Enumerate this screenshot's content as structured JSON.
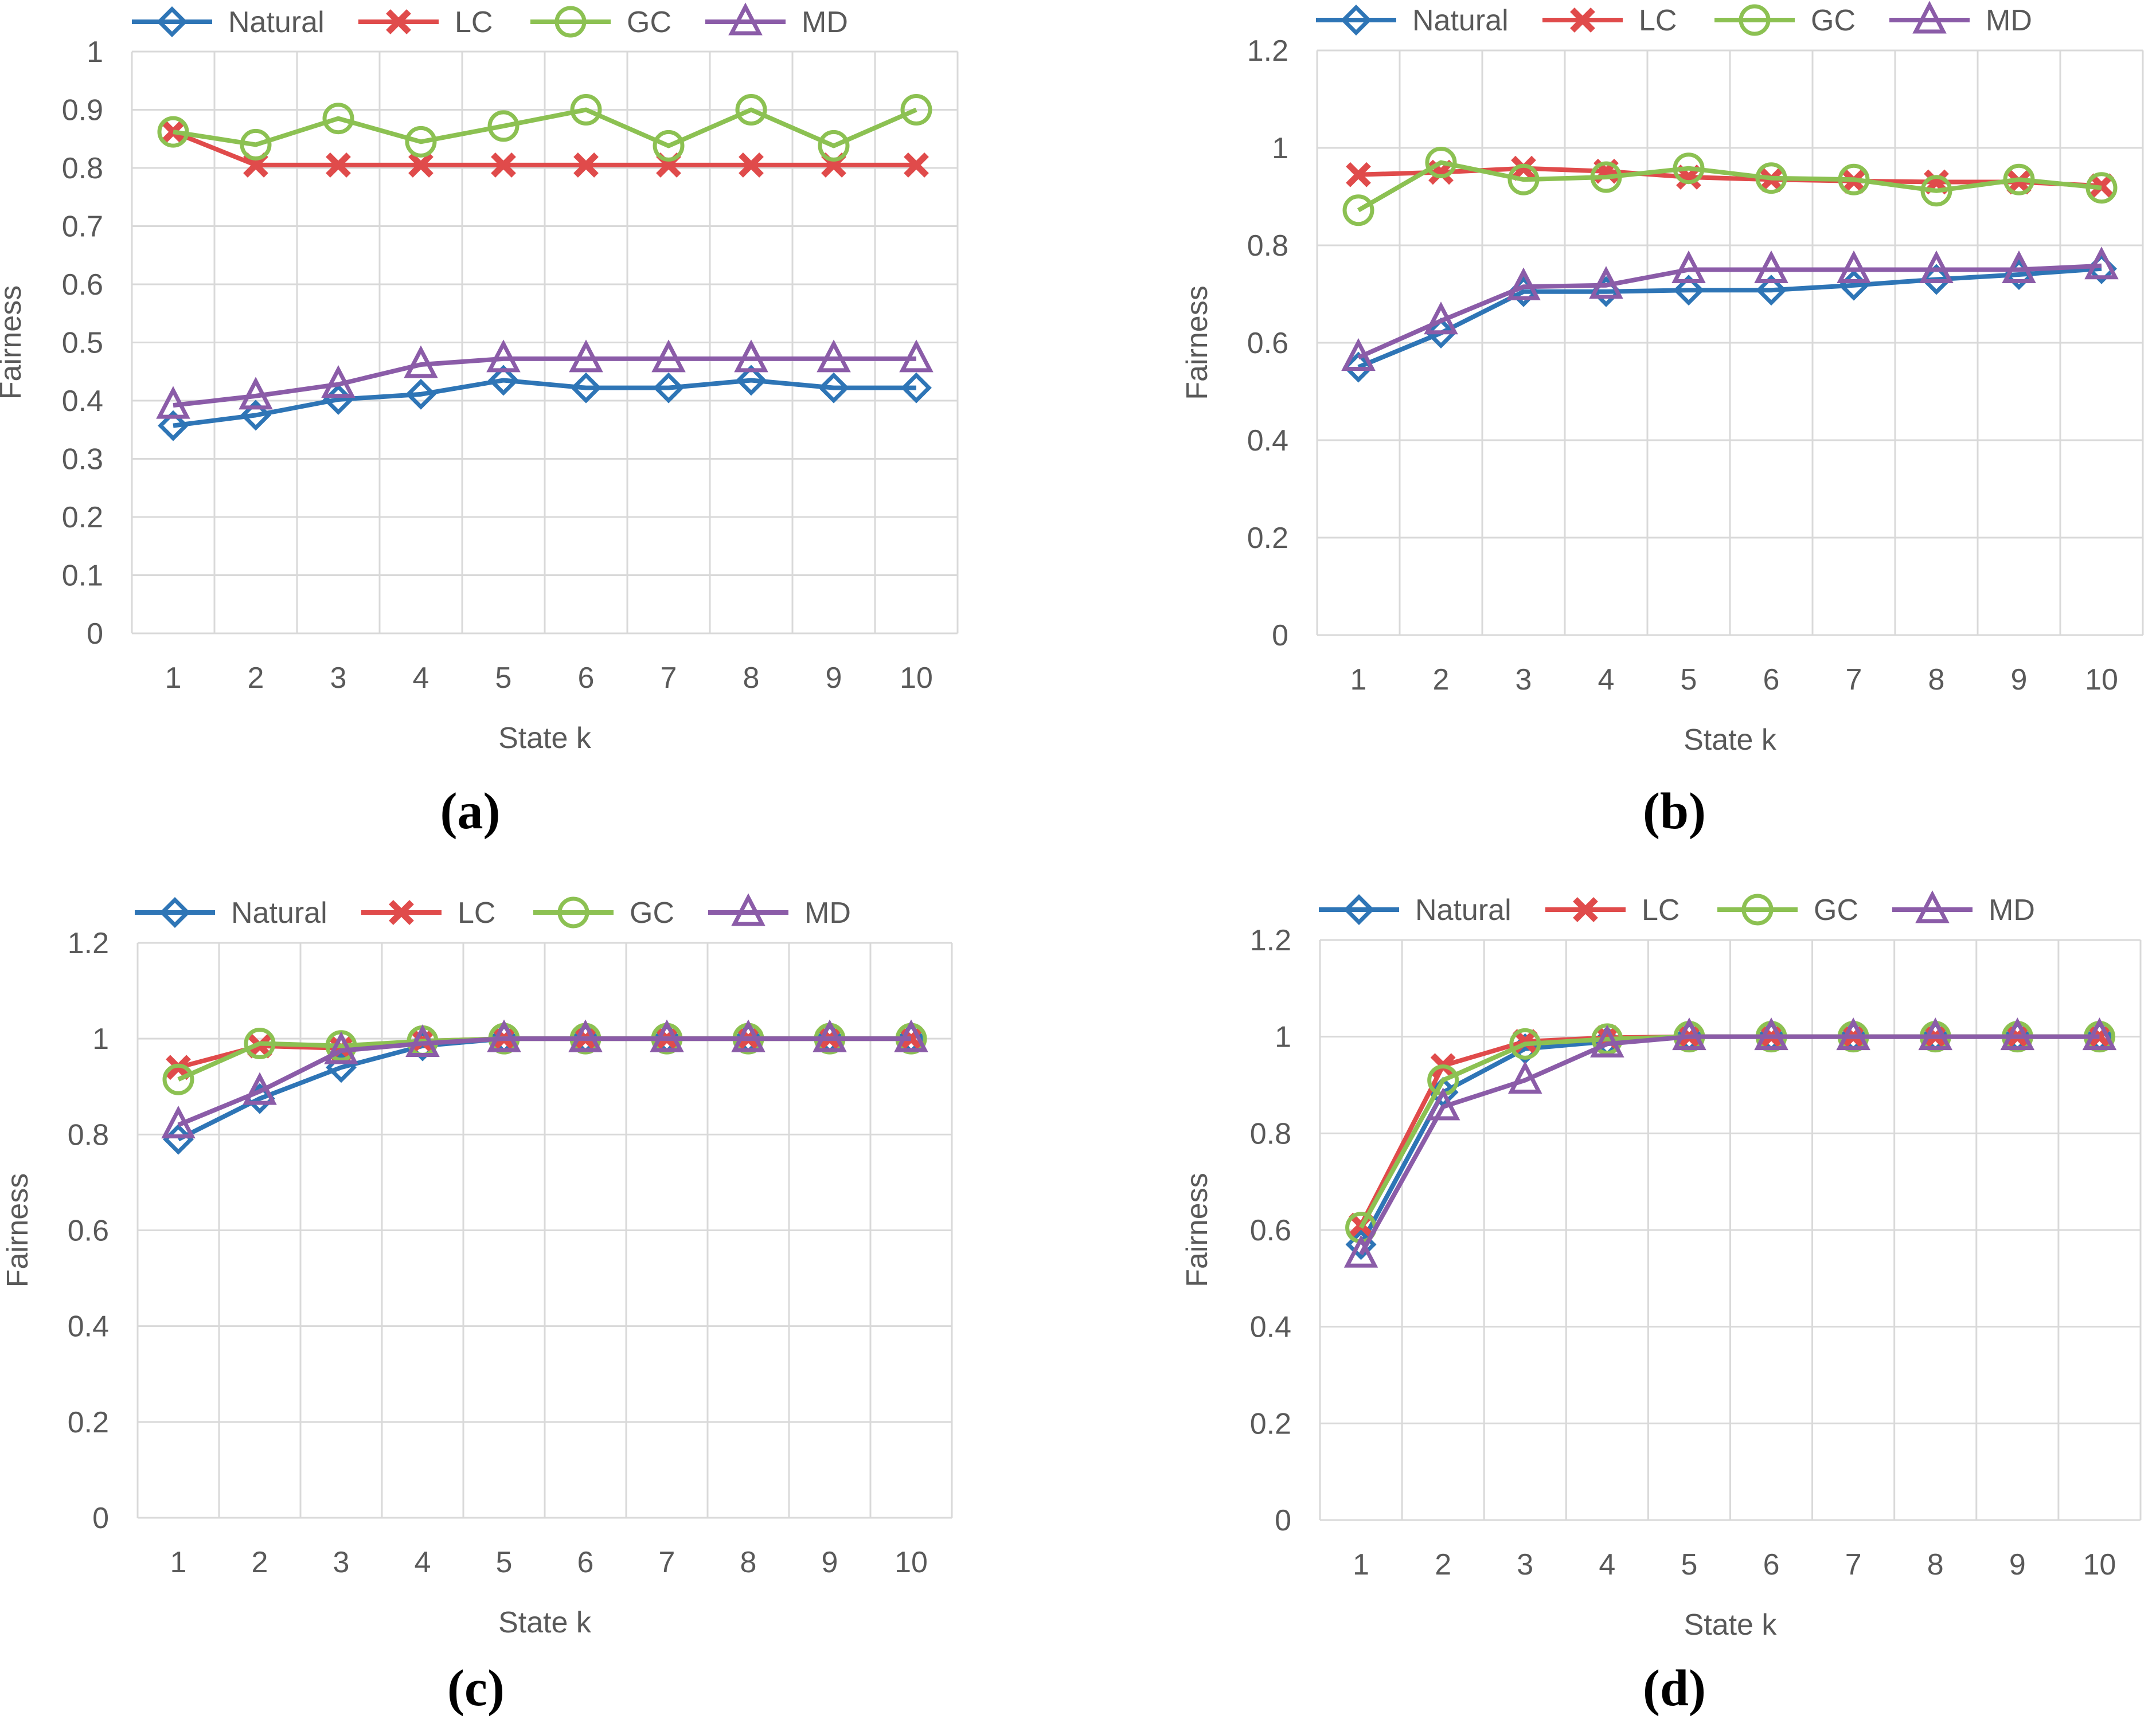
{
  "colors": {
    "Natural": "#2E75B6",
    "LC": "#E04B4B",
    "GC": "#8CC152",
    "MD": "#8B5CA8",
    "grid": "#D9D9D9",
    "text": "#595959"
  },
  "markers": {
    "Natural": "diamond",
    "LC": "x",
    "GC": "circle",
    "MD": "triangle"
  },
  "chart_data": [
    {
      "panel_label": "(a)",
      "type": "line",
      "xlabel": "State k",
      "ylabel": "Fairness",
      "x": [
        1,
        2,
        3,
        4,
        5,
        6,
        7,
        8,
        9,
        10
      ],
      "ylim": [
        0,
        1
      ],
      "yticks": [
        "0",
        "0.1",
        "0.2",
        "0.3",
        "0.4",
        "0.5",
        "0.6",
        "0.7",
        "0.8",
        "0.9",
        "1"
      ],
      "grid": true,
      "legend_position": "top",
      "series": [
        {
          "name": "Natural",
          "values": [
            0.357,
            0.375,
            0.402,
            0.411,
            0.435,
            0.422,
            0.422,
            0.435,
            0.422,
            0.422
          ]
        },
        {
          "name": "LC",
          "values": [
            0.862,
            0.805,
            0.805,
            0.805,
            0.805,
            0.805,
            0.805,
            0.805,
            0.805,
            0.805
          ]
        },
        {
          "name": "GC",
          "values": [
            0.862,
            0.84,
            0.885,
            0.845,
            0.872,
            0.9,
            0.838,
            0.9,
            0.838,
            0.9
          ]
        },
        {
          "name": "MD",
          "values": [
            0.392,
            0.408,
            0.428,
            0.462,
            0.472,
            0.472,
            0.472,
            0.472,
            0.472,
            0.472
          ]
        }
      ]
    },
    {
      "panel_label": "(b)",
      "type": "line",
      "xlabel": "State k",
      "ylabel": "Fairness",
      "x": [
        1,
        2,
        3,
        4,
        5,
        6,
        7,
        8,
        9,
        10
      ],
      "ylim": [
        0,
        1.2
      ],
      "yticks": [
        "0",
        "0.2",
        "0.4",
        "0.6",
        "0.8",
        "1",
        "1.2"
      ],
      "grid": true,
      "legend_position": "top",
      "series": [
        {
          "name": "Natural",
          "values": [
            0.55,
            0.62,
            0.705,
            0.705,
            0.708,
            0.708,
            0.718,
            0.73,
            0.74,
            0.752
          ]
        },
        {
          "name": "LC",
          "values": [
            0.945,
            0.95,
            0.958,
            0.952,
            0.94,
            0.935,
            0.932,
            0.93,
            0.93,
            0.922
          ]
        },
        {
          "name": "GC",
          "values": [
            0.872,
            0.97,
            0.935,
            0.94,
            0.958,
            0.938,
            0.935,
            0.912,
            0.935,
            0.918
          ]
        },
        {
          "name": "MD",
          "values": [
            0.57,
            0.645,
            0.715,
            0.718,
            0.75,
            0.75,
            0.75,
            0.75,
            0.75,
            0.758
          ]
        }
      ]
    },
    {
      "panel_label": "(c)",
      "type": "line",
      "xlabel": "State k",
      "ylabel": "Fairness",
      "x": [
        1,
        2,
        3,
        4,
        5,
        6,
        7,
        8,
        9,
        10
      ],
      "ylim": [
        0,
        1.2
      ],
      "yticks": [
        "0",
        "0.2",
        "0.4",
        "0.6",
        "0.8",
        "1",
        "1.2"
      ],
      "grid": true,
      "legend_position": "top",
      "series": [
        {
          "name": "Natural",
          "values": [
            0.79,
            0.875,
            0.94,
            0.985,
            1,
            1,
            1,
            1,
            1,
            1
          ]
        },
        {
          "name": "LC",
          "values": [
            0.94,
            0.985,
            0.98,
            0.995,
            1,
            1,
            1,
            1,
            1,
            1
          ]
        },
        {
          "name": "GC",
          "values": [
            0.915,
            0.99,
            0.985,
            0.995,
            1,
            1,
            1,
            1,
            1,
            1
          ]
        },
        {
          "name": "MD",
          "values": [
            0.82,
            0.89,
            0.975,
            0.99,
            1,
            1,
            1,
            1,
            1,
            1
          ]
        }
      ]
    },
    {
      "panel_label": "(d)",
      "type": "line",
      "xlabel": "State k",
      "ylabel": "Fairness",
      "x": [
        1,
        2,
        3,
        4,
        5,
        6,
        7,
        8,
        9,
        10
      ],
      "ylim": [
        0,
        1.2
      ],
      "yticks": [
        "0",
        "0.2",
        "0.4",
        "0.6",
        "0.8",
        "1",
        "1.2"
      ],
      "grid": true,
      "legend_position": "top",
      "series": [
        {
          "name": "Natural",
          "values": [
            0.57,
            0.885,
            0.975,
            0.99,
            1,
            1,
            1,
            1,
            1,
            1
          ]
        },
        {
          "name": "LC",
          "values": [
            0.61,
            0.94,
            0.99,
            0.998,
            1,
            1,
            1,
            1,
            1,
            1
          ]
        },
        {
          "name": "GC",
          "values": [
            0.605,
            0.91,
            0.985,
            0.995,
            1,
            1,
            1,
            1,
            1,
            1
          ]
        },
        {
          "name": "MD",
          "values": [
            0.55,
            0.855,
            0.91,
            0.985,
            1,
            1,
            1,
            1,
            1,
            1
          ]
        }
      ]
    }
  ]
}
